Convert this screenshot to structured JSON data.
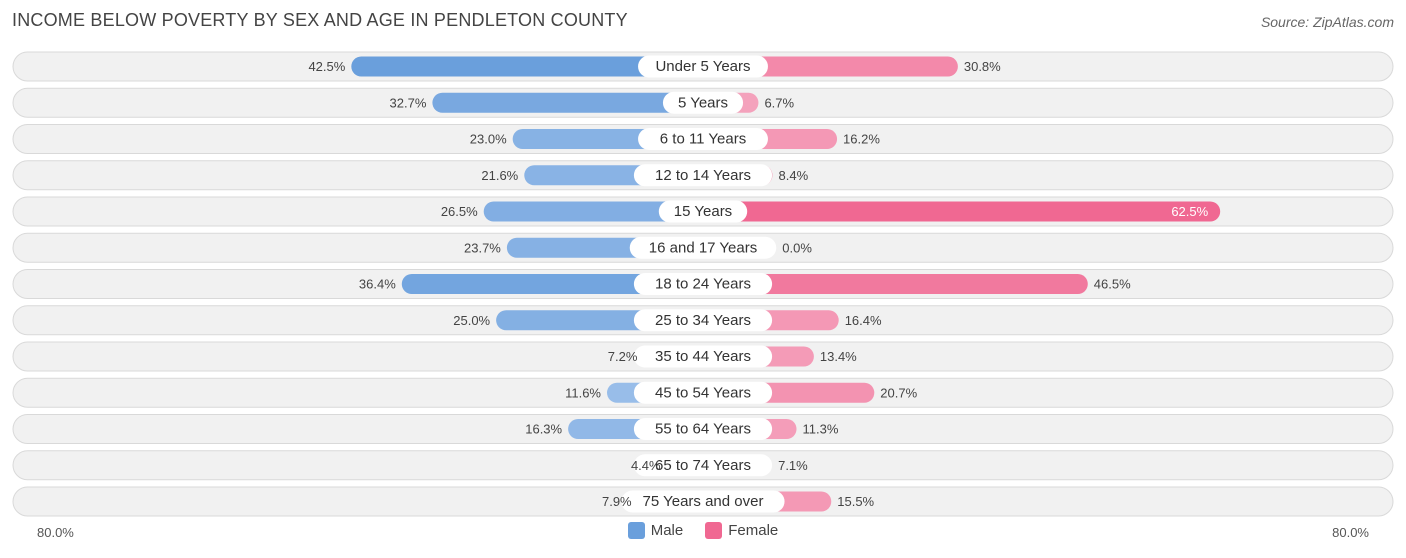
{
  "title": "INCOME BELOW POVERTY BY SEX AND AGE IN PENDLETON COUNTY",
  "source": "Source: ZipAtlas.com",
  "colors": {
    "male_dark": "#6a9fdc",
    "male_light": "#a9c8ee",
    "female_dark": "#f06892",
    "female_light": "#f5a9c1"
  },
  "chart_data": {
    "type": "bar",
    "orientation": "horizontal-diverging",
    "categories": [
      "Under 5 Years",
      "5 Years",
      "6 to 11 Years",
      "12 to 14 Years",
      "15 Years",
      "16 and 17 Years",
      "18 to 24 Years",
      "25 to 34 Years",
      "35 to 44 Years",
      "45 to 54 Years",
      "55 to 64 Years",
      "65 to 74 Years",
      "75 Years and over"
    ],
    "series": [
      {
        "name": "Male",
        "values": [
          42.5,
          32.7,
          23.0,
          21.6,
          26.5,
          23.7,
          36.4,
          25.0,
          7.2,
          11.6,
          16.3,
          4.4,
          7.9
        ]
      },
      {
        "name": "Female",
        "values": [
          30.8,
          6.7,
          16.2,
          8.4,
          62.5,
          0.0,
          46.5,
          16.4,
          13.4,
          20.7,
          11.3,
          7.1,
          15.5
        ]
      }
    ],
    "value_labels": {
      "male": [
        "42.5%",
        "32.7%",
        "23.0%",
        "21.6%",
        "26.5%",
        "23.7%",
        "36.4%",
        "25.0%",
        "7.2%",
        "11.6%",
        "16.3%",
        "4.4%",
        "7.9%"
      ],
      "female": [
        "30.8%",
        "6.7%",
        "16.2%",
        "8.4%",
        "62.5%",
        "0.0%",
        "46.5%",
        "16.4%",
        "13.4%",
        "20.7%",
        "11.3%",
        "7.1%",
        "15.5%"
      ]
    },
    "xlim": [
      -80,
      80
    ],
    "axis_labels": {
      "left": "80.0%",
      "right": "80.0%"
    },
    "legend": {
      "position": "bottom-center",
      "items": [
        "Male",
        "Female"
      ]
    },
    "grid": false
  }
}
